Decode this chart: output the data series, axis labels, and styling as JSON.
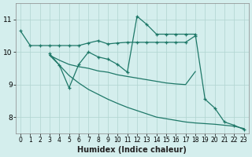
{
  "xlabel": "Humidex (Indice chaleur)",
  "bg_color": "#d4eeed",
  "grid_color": "#b0d4d0",
  "line_color": "#1e7868",
  "xlim": [
    -0.5,
    23.5
  ],
  "ylim": [
    7.5,
    11.5
  ],
  "xticks": [
    0,
    1,
    2,
    3,
    4,
    5,
    6,
    7,
    8,
    9,
    10,
    11,
    12,
    13,
    14,
    15,
    16,
    17,
    18,
    19,
    20,
    21,
    22,
    23
  ],
  "yticks": [
    8,
    9,
    10,
    11
  ],
  "series": [
    {
      "x": [
        0,
        1,
        2,
        3,
        4,
        5,
        6,
        7,
        8,
        9,
        10,
        11,
        12,
        13,
        14,
        15,
        16,
        17,
        18
      ],
      "y": [
        10.65,
        10.2,
        10.2,
        10.2,
        10.2,
        10.2,
        10.2,
        10.28,
        10.35,
        10.25,
        10.28,
        10.3,
        10.3,
        10.3,
        10.3,
        10.3,
        10.3,
        10.3,
        10.5
      ],
      "marker": true
    },
    {
      "x": [
        3,
        4,
        5,
        6,
        7,
        8,
        9,
        10,
        11,
        12,
        13,
        14,
        15,
        16,
        17,
        18,
        19,
        20,
        21,
        22,
        23
      ],
      "y": [
        9.95,
        9.6,
        8.9,
        9.62,
        10.0,
        9.85,
        9.78,
        9.62,
        9.38,
        11.1,
        10.85,
        10.55,
        10.55,
        10.55,
        10.55,
        10.55,
        8.55,
        8.28,
        7.85,
        7.75,
        7.62
      ],
      "marker": true
    },
    {
      "x": [
        3,
        4,
        5,
        6,
        7,
        8,
        9,
        10,
        11,
        12,
        13,
        14,
        15,
        16,
        17,
        18
      ],
      "y": [
        9.9,
        9.75,
        9.62,
        9.55,
        9.5,
        9.42,
        9.38,
        9.3,
        9.25,
        9.2,
        9.15,
        9.1,
        9.05,
        9.02,
        9.0,
        9.4
      ],
      "marker": false
    },
    {
      "x": [
        3,
        4,
        5,
        6,
        7,
        8,
        9,
        10,
        11,
        12,
        13,
        14,
        15,
        16,
        17,
        18,
        19,
        20,
        21,
        22,
        23
      ],
      "y": [
        9.9,
        9.6,
        9.28,
        9.05,
        8.85,
        8.7,
        8.55,
        8.42,
        8.3,
        8.2,
        8.1,
        8.0,
        7.95,
        7.9,
        7.85,
        7.82,
        7.8,
        7.78,
        7.75,
        7.72,
        7.65
      ],
      "marker": false
    }
  ]
}
